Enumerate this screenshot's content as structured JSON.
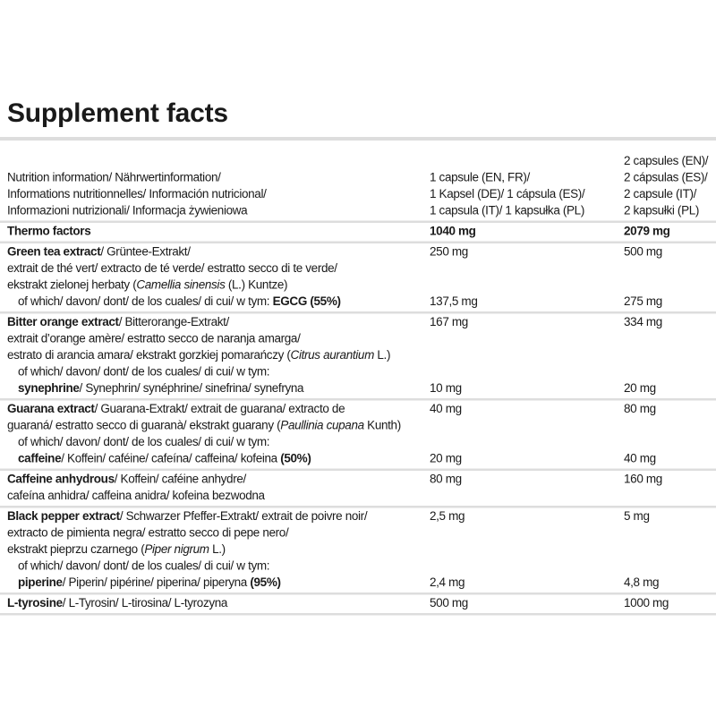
{
  "title": "Supplement facts",
  "table": {
    "rows": [
      {
        "lines": [
          {
            "cells": [
              null,
              null,
              [
                {
                  "text": "2 capsules (EN)/"
                }
              ]
            ]
          },
          {
            "cells": [
              [
                {
                  "text": "Nutrition information/ Nährwertinformation/"
                }
              ],
              [
                {
                  "text": "1 capsule (EN, FR)/"
                }
              ],
              [
                {
                  "text": "2 cápsulas (ES)/"
                }
              ]
            ]
          },
          {
            "cells": [
              [
                {
                  "text": "Informations nutritionnelles/ Información nutricional/"
                }
              ],
              [
                {
                  "text": "1 Kapsel (DE)/ 1 cápsula (ES)/"
                }
              ],
              [
                {
                  "text": "2 capsule (IT)/"
                }
              ]
            ]
          },
          {
            "cells": [
              [
                {
                  "text": "Informazioni nutrizionali/ Informacja żywieniowa"
                }
              ],
              [
                {
                  "text": "1 capsula (IT)/ 1 kapsułka (PL)"
                }
              ],
              [
                {
                  "text": "2 kapsułki (PL)"
                }
              ]
            ]
          }
        ]
      },
      {
        "lines": [
          {
            "cells": [
              [
                {
                  "text": "Thermo factors",
                  "style": "bold"
                }
              ],
              [
                {
                  "text": "1040 mg",
                  "style": "bold"
                }
              ],
              [
                {
                  "text": "2079 mg",
                  "style": "bold"
                }
              ]
            ]
          }
        ]
      },
      {
        "lines": [
          {
            "cells": [
              [
                {
                  "text": "Green tea extract",
                  "style": "bold"
                },
                {
                  "text": "/ Grüntee-Extrakt/"
                }
              ],
              [
                {
                  "text": "250 mg"
                }
              ],
              [
                {
                  "text": "500 mg"
                }
              ]
            ]
          },
          {
            "cells": [
              [
                {
                  "text": "extrait de thé vert/ extracto de té verde/ estratto secco di te verde/"
                }
              ],
              null,
              null
            ]
          },
          {
            "cells": [
              [
                {
                  "text": "ekstrakt zielonej herbaty ("
                },
                {
                  "text": "Camellia sinensis",
                  "style": "italic"
                },
                {
                  "text": " (L.) Kuntze)"
                }
              ],
              null,
              null
            ]
          },
          {
            "indent": true,
            "cells": [
              [
                {
                  "text": "of which/ davon/ dont/ de los cuales/ di cui/ w tym: "
                },
                {
                  "text": "EGCG (55%)",
                  "style": "bold"
                }
              ],
              [
                {
                  "text": "137,5 mg"
                }
              ],
              [
                {
                  "text": "275 mg"
                }
              ]
            ]
          }
        ]
      },
      {
        "lines": [
          {
            "cells": [
              [
                {
                  "text": "Bitter orange extract",
                  "style": "bold"
                },
                {
                  "text": "/ Bitterorange-Extrakt/"
                }
              ],
              [
                {
                  "text": "167 mg"
                }
              ],
              [
                {
                  "text": "334 mg"
                }
              ]
            ]
          },
          {
            "cells": [
              [
                {
                  "text": "extrait d’orange amère/ estratto secco de naranja amarga/"
                }
              ],
              null,
              null
            ]
          },
          {
            "cells": [
              [
                {
                  "text": "estrato di arancia amara/ ekstrakt gorzkiej pomarańczy ("
                },
                {
                  "text": "Citrus aurantium",
                  "style": "italic"
                },
                {
                  "text": " L.)"
                }
              ],
              null,
              null
            ]
          },
          {
            "indent": true,
            "cells": [
              [
                {
                  "text": "of which/ davon/ dont/ de los cuales/ di cui/ w tym:"
                }
              ],
              null,
              null
            ]
          },
          {
            "indent": true,
            "cells": [
              [
                {
                  "text": "synephrine",
                  "style": "bold"
                },
                {
                  "text": "/ Synephrin/ synéphrine/ sinefrina/ synefryna"
                }
              ],
              [
                {
                  "text": "10 mg"
                }
              ],
              [
                {
                  "text": "20 mg"
                }
              ]
            ]
          }
        ]
      },
      {
        "lines": [
          {
            "cells": [
              [
                {
                  "text": "Guarana extract",
                  "style": "bold"
                },
                {
                  "text": "/ Guarana-Extrakt/ extrait de guarana/ extracto de"
                }
              ],
              [
                {
                  "text": "40 mg"
                }
              ],
              [
                {
                  "text": "80 mg"
                }
              ]
            ]
          },
          {
            "cells": [
              [
                {
                  "text": "guaraná/ estratto secco di guaranà/ ekstrakt guarany ("
                },
                {
                  "text": "Paullinia cupana",
                  "style": "italic"
                },
                {
                  "text": " Kunth)"
                }
              ],
              null,
              null
            ]
          },
          {
            "indent": true,
            "cells": [
              [
                {
                  "text": "of which/ davon/ dont/ de los cuales/ di cui/ w tym:"
                }
              ],
              null,
              null
            ]
          },
          {
            "indent": true,
            "cells": [
              [
                {
                  "text": "caffeine",
                  "style": "bold"
                },
                {
                  "text": "/ Koffein/ caféine/ cafeína/ caffeina/ kofeina "
                },
                {
                  "text": "(50%)",
                  "style": "bold"
                }
              ],
              [
                {
                  "text": "20 mg"
                }
              ],
              [
                {
                  "text": "40 mg"
                }
              ]
            ]
          }
        ]
      },
      {
        "lines": [
          {
            "cells": [
              [
                {
                  "text": "Caffeine anhydrous",
                  "style": "bold"
                },
                {
                  "text": "/ Koffein/ caféine anhydre/"
                }
              ],
              [
                {
                  "text": "80 mg"
                }
              ],
              [
                {
                  "text": "160 mg"
                }
              ]
            ]
          },
          {
            "cells": [
              [
                {
                  "text": "cafeína anhidra/ caffeina anidra/ kofeina bezwodna"
                }
              ],
              null,
              null
            ]
          }
        ]
      },
      {
        "lines": [
          {
            "cells": [
              [
                {
                  "text": "Black pepper extract",
                  "style": "bold"
                },
                {
                  "text": "/ Schwarzer Pfeffer-Extrakt/ extrait de poivre noir/"
                }
              ],
              [
                {
                  "text": "2,5 mg"
                }
              ],
              [
                {
                  "text": "5 mg"
                }
              ]
            ]
          },
          {
            "cells": [
              [
                {
                  "text": "extracto de pimienta negra/ estratto secco di pepe nero/"
                }
              ],
              null,
              null
            ]
          },
          {
            "cells": [
              [
                {
                  "text": "ekstrakt pieprzu czarnego ("
                },
                {
                  "text": "Piper nigrum",
                  "style": "italic"
                },
                {
                  "text": " L.)"
                }
              ],
              null,
              null
            ]
          },
          {
            "indent": true,
            "cells": [
              [
                {
                  "text": "of which/ davon/ dont/ de los cuales/ di cui/ w tym:"
                }
              ],
              null,
              null
            ]
          },
          {
            "indent": true,
            "cells": [
              [
                {
                  "text": "piperine",
                  "style": "bold"
                },
                {
                  "text": "/ Piperin/ pipérine/ piperina/ piperyna "
                },
                {
                  "text": "(95%)",
                  "style": "bold"
                }
              ],
              [
                {
                  "text": "2,4 mg"
                }
              ],
              [
                {
                  "text": "4,8 mg"
                }
              ]
            ]
          }
        ]
      },
      {
        "lines": [
          {
            "cells": [
              [
                {
                  "text": "L-tyrosine",
                  "style": "bold"
                },
                {
                  "text": "/ L-Tyrosin/ L-tirosina/ L-tyrozyna"
                }
              ],
              [
                {
                  "text": "500 mg"
                }
              ],
              [
                {
                  "text": "1000 mg"
                }
              ]
            ]
          }
        ]
      }
    ]
  }
}
